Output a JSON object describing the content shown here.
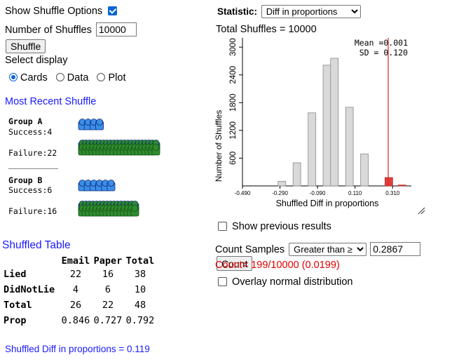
{
  "controls": {
    "show_shuffle_label": "Show Shuffle Options",
    "show_shuffle_checked": true,
    "num_shuffles_label": "Number of Shuffles",
    "num_shuffles_value": "10000",
    "shuffle_button": "Shuffle",
    "select_display_label": "Select display",
    "display_options": [
      "Cards",
      "Data",
      "Plot"
    ],
    "display_selected": "Cards"
  },
  "recent": {
    "title": "Most Recent Shuffle",
    "group_a": {
      "name": "Group A",
      "success_label": "Success:4",
      "failure_label": "Failure:22",
      "success_count": 4,
      "failure_count": 22
    },
    "group_b": {
      "name": "Group B",
      "success_label": "Success:6",
      "failure_label": "Failure:16",
      "success_count": 6,
      "failure_count": 16
    }
  },
  "shuffled_table": {
    "title": "Shuffled Table",
    "headers": [
      "",
      "Email",
      "Paper",
      "Total"
    ],
    "rows": [
      [
        "Lied",
        "22",
        "16",
        "38"
      ],
      [
        "DidNotLie",
        "4",
        "6",
        "10"
      ],
      [
        "Total",
        "26",
        "22",
        "48"
      ],
      [
        "Prop",
        "0.846",
        "0.727",
        "0.792"
      ]
    ],
    "diff_text": "Shuffled Diff in proportions = 0.119"
  },
  "statistic": {
    "label": "Statistic:",
    "selected": "Diff in proportions",
    "total_shuffles": "Total Shuffles = 10000"
  },
  "chart_data": {
    "type": "bar",
    "xlabel": "Shuffled Diff in proportions",
    "ylabel": "Number of Shuffles",
    "mean_label": "Mean =0.001",
    "sd_label": "SD = 0.120",
    "xlim": [
      -0.49,
      0.41
    ],
    "ylim": [
      0,
      3200
    ],
    "x_ticks": [
      "-0.490",
      "-0.290",
      "-0.090",
      "0.110",
      "0.310"
    ],
    "x_tick_values": [
      -0.49,
      -0.29,
      -0.09,
      0.11,
      0.31
    ],
    "y_ticks": [
      "600",
      "1200",
      "1800",
      "2400",
      "3000"
    ],
    "y_tick_values": [
      600,
      1200,
      1800,
      2400,
      3000
    ],
    "bins": [
      {
        "x": -0.28,
        "value": 100,
        "highlight": false
      },
      {
        "x": -0.2,
        "value": 500,
        "highlight": false
      },
      {
        "x": -0.12,
        "value": 1580,
        "highlight": false
      },
      {
        "x": -0.04,
        "value": 2610,
        "highlight": false
      },
      {
        "x": 0.0,
        "value": 2760,
        "highlight": false
      },
      {
        "x": 0.08,
        "value": 1700,
        "highlight": false
      },
      {
        "x": 0.16,
        "value": 690,
        "highlight": false
      },
      {
        "x": 0.29,
        "value": 180,
        "highlight": true
      },
      {
        "x": 0.36,
        "value": 19,
        "highlight": true
      }
    ],
    "cutoff": 0.2867,
    "cutoff_color": "#e02020",
    "bar_color": "#d9d9d9",
    "highlight_color": "#e04040"
  },
  "options": {
    "show_previous": "Show previous results",
    "count_samples_label": "Count Samples",
    "count_mode": "Greater than ≥",
    "count_value": "0.2867",
    "count_button": "Count",
    "count_result": "Count= 199/10000 (0.0199)",
    "overlay_normal": "Overlay normal distribution"
  }
}
